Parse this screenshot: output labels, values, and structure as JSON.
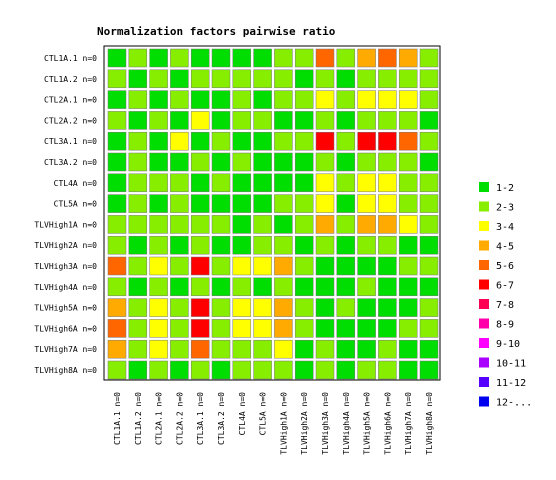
{
  "chart_data": {
    "type": "heatmap",
    "title": "Normalization factors pairwise ratio",
    "rows": [
      "CTL1A.1 n=0",
      "CTL1A.2 n=0",
      "CTL2A.1 n=0",
      "CTL2A.2 n=0",
      "CTL3A.1 n=0",
      "CTL3A.2 n=0",
      "CTL4A n=0",
      "CTL5A n=0",
      "TLVHigh1A n=0",
      "TLVHigh2A n=0",
      "TLVHigh3A n=0",
      "TLVHigh4A n=0",
      "TLVHigh5A n=0",
      "TLVHigh6A n=0",
      "TLVHigh7A n=0",
      "TLVHigh8A n=0"
    ],
    "columns": [
      "CTL1A.1 n=0",
      "CTL1A.2 n=0",
      "CTL2A.1 n=0",
      "CTL2A.2 n=0",
      "CTL3A.1 n=0",
      "CTL3A.2 n=0",
      "CTL4A n=0",
      "CTL5A n=0",
      "TLVHigh1A n=0",
      "TLVHigh2A n=0",
      "TLVHigh3A n=0",
      "TLVHigh4A n=0",
      "TLVHigh5A n=0",
      "TLVHigh6A n=0",
      "TLVHigh7A n=0",
      "TLVHigh8A n=0"
    ],
    "bins": [
      "1-2",
      "2-3",
      "3-4",
      "4-5",
      "5-6",
      "6-7",
      "7-8",
      "8-9",
      "9-10",
      "10-11",
      "11-12",
      "12-..."
    ],
    "bin_colors": [
      "#00dd00",
      "#88ee00",
      "#ffff00",
      "#ffaa00",
      "#ff6600",
      "#ff0000",
      "#ff0055",
      "#ff00aa",
      "#ff00ff",
      "#aa00ff",
      "#5500ff",
      "#0000ee"
    ],
    "cells": [
      [
        0,
        1,
        0,
        1,
        0,
        0,
        0,
        0,
        1,
        1,
        4,
        1,
        3,
        4,
        3,
        1
      ],
      [
        1,
        0,
        1,
        0,
        1,
        1,
        1,
        1,
        1,
        0,
        1,
        0,
        1,
        1,
        1,
        1
      ],
      [
        0,
        1,
        0,
        1,
        0,
        0,
        1,
        0,
        1,
        1,
        2,
        1,
        2,
        2,
        2,
        1
      ],
      [
        1,
        0,
        1,
        0,
        2,
        0,
        1,
        1,
        0,
        0,
        1,
        0,
        1,
        1,
        1,
        0
      ],
      [
        0,
        1,
        0,
        2,
        0,
        1,
        0,
        0,
        1,
        1,
        5,
        1,
        5,
        5,
        4,
        1
      ],
      [
        0,
        1,
        0,
        0,
        1,
        0,
        1,
        0,
        0,
        0,
        1,
        0,
        1,
        1,
        1,
        0
      ],
      [
        0,
        1,
        1,
        1,
        0,
        1,
        0,
        0,
        0,
        0,
        2,
        1,
        2,
        2,
        1,
        1
      ],
      [
        0,
        1,
        0,
        1,
        0,
        0,
        0,
        0,
        1,
        1,
        2,
        0,
        2,
        2,
        1,
        1
      ],
      [
        1,
        1,
        1,
        1,
        1,
        1,
        0,
        1,
        0,
        1,
        3,
        1,
        3,
        3,
        2,
        1
      ],
      [
        1,
        0,
        1,
        0,
        1,
        0,
        0,
        1,
        1,
        0,
        1,
        0,
        1,
        1,
        0,
        0
      ],
      [
        4,
        1,
        2,
        1,
        5,
        1,
        2,
        2,
        3,
        1,
        0,
        0,
        0,
        0,
        1,
        1
      ],
      [
        1,
        0,
        1,
        0,
        1,
        0,
        1,
        0,
        1,
        0,
        0,
        0,
        1,
        0,
        0,
        0
      ],
      [
        3,
        1,
        2,
        1,
        5,
        1,
        2,
        2,
        3,
        1,
        0,
        1,
        0,
        0,
        0,
        1
      ],
      [
        4,
        1,
        2,
        1,
        5,
        1,
        2,
        2,
        3,
        1,
        0,
        0,
        0,
        0,
        1,
        1
      ],
      [
        3,
        1,
        2,
        1,
        4,
        1,
        1,
        1,
        2,
        0,
        1,
        0,
        0,
        1,
        0,
        0
      ],
      [
        1,
        0,
        1,
        0,
        1,
        0,
        1,
        1,
        1,
        0,
        1,
        0,
        1,
        1,
        0,
        0
      ]
    ],
    "legend_position": "right"
  }
}
